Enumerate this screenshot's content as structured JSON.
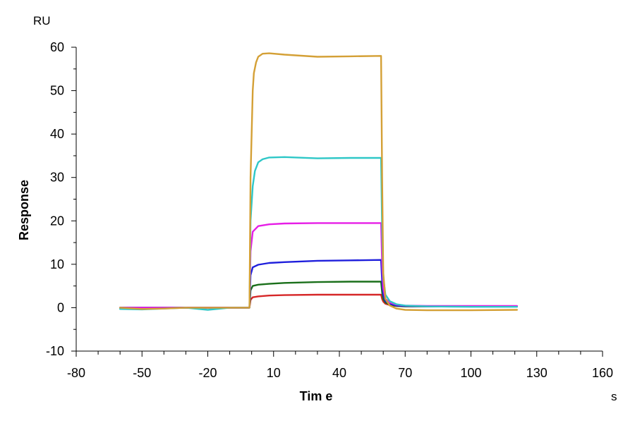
{
  "chart_data": {
    "type": "line",
    "xlabel": "Tim e",
    "ylabel": "Response",
    "x_unit": "s",
    "y_unit": "RU",
    "xlim": [
      -80,
      160
    ],
    "ylim": [
      -10,
      60
    ],
    "x_ticks": [
      -80,
      -50,
      -20,
      10,
      40,
      70,
      100,
      130,
      160
    ],
    "y_ticks": [
      -10,
      0,
      10,
      20,
      30,
      40,
      50,
      60
    ],
    "grid": false,
    "legend": "none",
    "series": [
      {
        "color": "#d62728",
        "x": [
          -60,
          -50,
          -40,
          -30,
          -20,
          -10,
          -1,
          -0.5,
          0.5,
          3,
          8,
          15,
          30,
          45,
          59,
          59.5,
          60,
          61,
          63,
          66,
          70,
          80,
          100,
          121
        ],
        "y": [
          0,
          0,
          0,
          0,
          0,
          0,
          0,
          1.8,
          2.4,
          2.6,
          2.8,
          2.9,
          3.0,
          3.0,
          3.0,
          2.0,
          1.4,
          0.9,
          0.6,
          0.4,
          0.3,
          0.3,
          0.3,
          0.3
        ]
      },
      {
        "color": "#1a6f1a",
        "x": [
          -60,
          -50,
          -40,
          -30,
          -20,
          -10,
          -1,
          -0.5,
          0.5,
          3,
          8,
          15,
          30,
          45,
          59,
          59.5,
          60,
          61,
          63,
          66,
          70,
          80,
          100,
          121
        ],
        "y": [
          0,
          0,
          0,
          0,
          0,
          0,
          0,
          4.0,
          5.0,
          5.3,
          5.5,
          5.7,
          5.9,
          6.0,
          6.0,
          3.5,
          2.0,
          1.2,
          0.7,
          0.4,
          0.3,
          0.3,
          0.3,
          0.3
        ]
      },
      {
        "color": "#1f1fdc",
        "x": [
          -60,
          -50,
          -40,
          -30,
          -20,
          -10,
          -1,
          -0.5,
          0.5,
          3,
          8,
          15,
          30,
          45,
          59,
          59.5,
          60,
          61,
          63,
          66,
          70,
          80,
          100,
          121
        ],
        "y": [
          0,
          0,
          0,
          0,
          0,
          0,
          0,
          7.5,
          9.3,
          9.9,
          10.3,
          10.5,
          10.8,
          10.9,
          11.0,
          6.0,
          3.0,
          1.5,
          0.9,
          0.5,
          0.4,
          0.3,
          0.3,
          0.3
        ]
      },
      {
        "color": "#e61ee6",
        "x": [
          -60,
          -50,
          -40,
          -30,
          -20,
          -10,
          -1,
          -0.5,
          0.5,
          3,
          8,
          15,
          30,
          45,
          59,
          59.5,
          60,
          61,
          63,
          66,
          70,
          80,
          100,
          121
        ],
        "y": [
          0,
          0,
          0,
          0,
          0,
          0,
          0,
          13.0,
          17.5,
          18.8,
          19.2,
          19.4,
          19.5,
          19.5,
          19.5,
          10.0,
          4.5,
          2.0,
          1.2,
          0.7,
          0.5,
          0.4,
          0.4,
          0.4
        ]
      },
      {
        "color": "#2ec7c7",
        "x": [
          -60,
          -50,
          -40,
          -30,
          -20,
          -10,
          -1,
          -0.5,
          0.5,
          1.5,
          3,
          5,
          8,
          15,
          30,
          45,
          59,
          59.5,
          60,
          61,
          63,
          66,
          70,
          80,
          100,
          121
        ],
        "y": [
          -0.3,
          -0.4,
          -0.2,
          0,
          -0.5,
          0,
          0,
          20.0,
          28.0,
          31.5,
          33.5,
          34.2,
          34.6,
          34.7,
          34.4,
          34.5,
          34.5,
          18.0,
          7.0,
          3.0,
          1.5,
          0.8,
          0.5,
          0.3,
          0.2,
          0.2
        ]
      },
      {
        "color": "#d4a036",
        "x": [
          -60,
          -50,
          -40,
          -30,
          -20,
          -10,
          -1,
          -0.5,
          0.5,
          1,
          2,
          3,
          5,
          8,
          15,
          30,
          45,
          59,
          59.5,
          60,
          61,
          63,
          66,
          70,
          80,
          100,
          121
        ],
        "y": [
          0,
          -0.3,
          -0.2,
          0,
          0,
          0,
          0,
          30.0,
          50.0,
          54.0,
          56.5,
          57.8,
          58.5,
          58.6,
          58.3,
          57.8,
          57.9,
          58.0,
          30.0,
          8.0,
          2.0,
          0.5,
          -0.2,
          -0.5,
          -0.6,
          -0.6,
          -0.5
        ]
      }
    ]
  }
}
